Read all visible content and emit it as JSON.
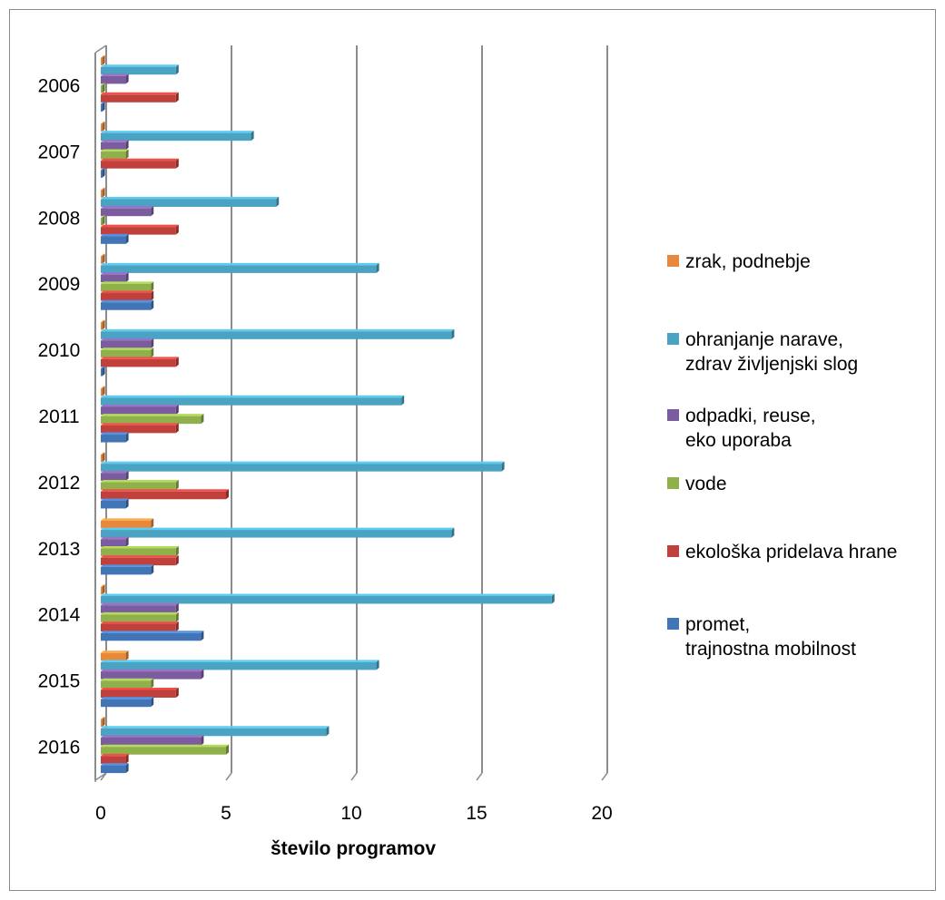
{
  "chart_data": {
    "type": "bar",
    "orientation": "horizontal",
    "style": "3d-clustered",
    "categories": [
      "2006",
      "2007",
      "2008",
      "2009",
      "2010",
      "2011",
      "2012",
      "2013",
      "2014",
      "2015",
      "2016"
    ],
    "series": [
      {
        "name": "zrak, podnebje",
        "color": "#e8883a",
        "values": [
          0,
          0,
          0,
          0,
          0,
          0,
          0,
          2,
          0,
          1,
          0
        ]
      },
      {
        "name": "ohranjanje narave,\nzdrav življenjski slog",
        "color": "#4aa3c2",
        "values": [
          3,
          6,
          7,
          11,
          14,
          12,
          16,
          14,
          18,
          11,
          9
        ]
      },
      {
        "name": "odpadki, reuse,\neko uporaba",
        "color": "#7b5c9e",
        "values": [
          1,
          1,
          2,
          1,
          2,
          3,
          1,
          1,
          3,
          4,
          4
        ]
      },
      {
        "name": "vode",
        "color": "#8fb04a",
        "values": [
          0,
          1,
          0,
          2,
          2,
          4,
          3,
          3,
          3,
          2,
          5
        ]
      },
      {
        "name": "ekološka pridelava hrane",
        "color": "#c0403c",
        "values": [
          3,
          3,
          3,
          2,
          3,
          3,
          5,
          3,
          3,
          3,
          1
        ]
      },
      {
        "name": "promet,\ntrajnostna mobilnost",
        "color": "#4275b5",
        "values": [
          0,
          0,
          1,
          2,
          0,
          1,
          1,
          2,
          4,
          2,
          1
        ]
      }
    ],
    "xlabel": "število programov",
    "ylabel": "",
    "xlim": [
      0,
      20
    ],
    "xticks": [
      "0",
      "5",
      "10",
      "15",
      "20"
    ],
    "grid": true,
    "legend_position": "right"
  }
}
